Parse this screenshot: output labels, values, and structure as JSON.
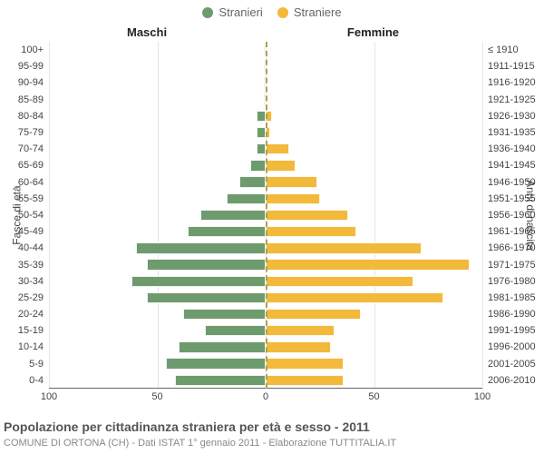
{
  "legend": {
    "male": {
      "label": "Stranieri",
      "color": "#6d9b6d"
    },
    "female": {
      "label": "Straniere",
      "color": "#f2b93b"
    }
  },
  "column_headers": {
    "left": "Maschi",
    "right": "Femmine"
  },
  "axis_titles": {
    "left": "Fasce di età",
    "right": "Anni di nascita"
  },
  "x_axis": {
    "max": 100,
    "ticks_left": [
      100,
      50,
      0
    ],
    "ticks_right": [
      0,
      50,
      100
    ]
  },
  "rows": [
    {
      "age": "100+",
      "birth": "≤ 1910",
      "m": 0,
      "f": 0
    },
    {
      "age": "95-99",
      "birth": "1911-1915",
      "m": 0,
      "f": 0
    },
    {
      "age": "90-94",
      "birth": "1916-1920",
      "m": 0,
      "f": 0
    },
    {
      "age": "85-89",
      "birth": "1921-1925",
      "m": 0,
      "f": 0
    },
    {
      "age": "80-84",
      "birth": "1926-1930",
      "m": 4,
      "f": 3
    },
    {
      "age": "75-79",
      "birth": "1931-1935",
      "m": 4,
      "f": 2
    },
    {
      "age": "70-74",
      "birth": "1936-1940",
      "m": 4,
      "f": 11
    },
    {
      "age": "65-69",
      "birth": "1941-1945",
      "m": 7,
      "f": 14
    },
    {
      "age": "60-64",
      "birth": "1946-1950",
      "m": 12,
      "f": 24
    },
    {
      "age": "55-59",
      "birth": "1951-1955",
      "m": 18,
      "f": 25
    },
    {
      "age": "50-54",
      "birth": "1956-1960",
      "m": 30,
      "f": 38
    },
    {
      "age": "45-49",
      "birth": "1961-1965",
      "m": 36,
      "f": 42
    },
    {
      "age": "40-44",
      "birth": "1966-1970",
      "m": 60,
      "f": 72
    },
    {
      "age": "35-39",
      "birth": "1971-1975",
      "m": 55,
      "f": 94
    },
    {
      "age": "30-34",
      "birth": "1976-1980",
      "m": 62,
      "f": 68
    },
    {
      "age": "25-29",
      "birth": "1981-1985",
      "m": 55,
      "f": 82
    },
    {
      "age": "20-24",
      "birth": "1986-1990",
      "m": 38,
      "f": 44
    },
    {
      "age": "15-19",
      "birth": "1991-1995",
      "m": 28,
      "f": 32
    },
    {
      "age": "10-14",
      "birth": "1996-2000",
      "m": 40,
      "f": 30
    },
    {
      "age": "5-9",
      "birth": "2001-2005",
      "m": 46,
      "f": 36
    },
    {
      "age": "0-4",
      "birth": "2006-2010",
      "m": 42,
      "f": 36
    }
  ],
  "styling": {
    "background_color": "#ffffff",
    "grid_color": "#e5e5e5",
    "centerline_color": "#b0a050",
    "label_color": "#444444",
    "bar_border": "rgba(255,255,255,0.9)"
  },
  "title": "Popolazione per cittadinanza straniera per età e sesso - 2011",
  "subtitle": "COMUNE DI ORTONA (CH) - Dati ISTAT 1° gennaio 2011 - Elaborazione TUTTITALIA.IT"
}
